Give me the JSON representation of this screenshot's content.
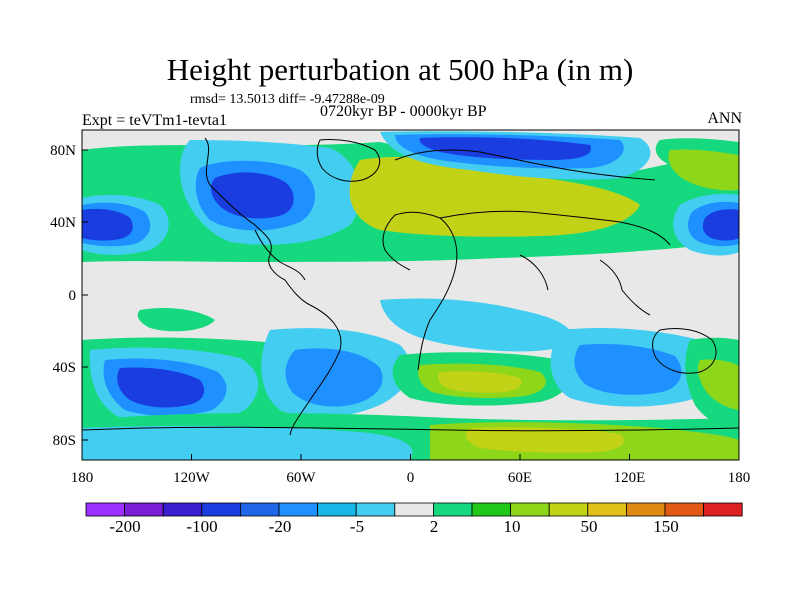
{
  "figure": {
    "title": "Height perturbation at 500 hPa (in m)",
    "stats": "rmsd= 13.5013 diff= -9.47288e-09",
    "experiment": "Expt = teVTm1-tevta1",
    "period": "0720kyr BP - 0000kyr BP",
    "season": "ANN"
  },
  "axes": {
    "x_ticks": [
      "180",
      "120W",
      "60W",
      "0",
      "60E",
      "120E",
      "180"
    ],
    "y_ticks": [
      "80N",
      "40N",
      "0",
      "40S",
      "80S"
    ]
  },
  "colorbar": {
    "colors": [
      "#9b30ff",
      "#7a1fd6",
      "#3a1fd0",
      "#1a3ddf",
      "#2066e8",
      "#1e90ff",
      "#18b6e6",
      "#43cdf0",
      "#e8e8e8",
      "#16d97f",
      "#21c81a",
      "#8dd619",
      "#c2d216",
      "#e2c21a",
      "#e08a16",
      "#e05a16",
      "#dd2020"
    ],
    "labels": [
      "-200",
      "-100",
      "-20",
      "-5",
      "2",
      "10",
      "50",
      "150"
    ]
  },
  "legend_palette": {
    "neg_strong": "#1a3ddf",
    "neg_mid": "#1e90ff",
    "neg_weak": "#43cdf0",
    "neutral": "#e8e8e8",
    "pos_weak": "#16d97f",
    "pos_mid": "#8dd619",
    "pos_strong": "#c2d216"
  }
}
